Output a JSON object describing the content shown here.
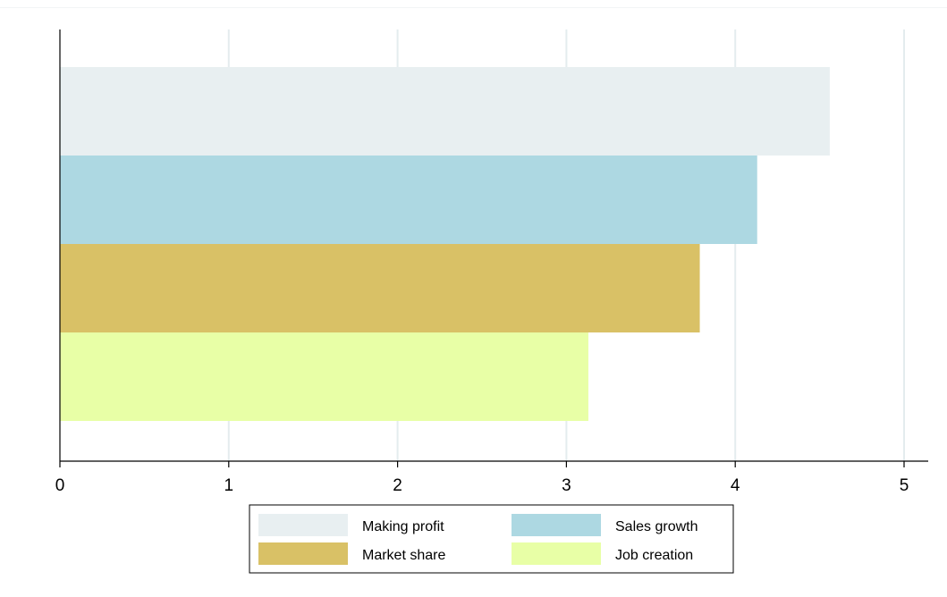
{
  "chart_data": {
    "type": "bar",
    "orientation": "horizontal",
    "title": "",
    "xlabel": "",
    "ylabel": "",
    "xlim": [
      0,
      5
    ],
    "x_ticks": [
      0,
      1,
      2,
      3,
      4,
      5
    ],
    "grid": true,
    "legend_position": "bottom",
    "series": [
      {
        "name": "Making profit",
        "value": 4.56,
        "color": "#e8eff1"
      },
      {
        "name": "Sales growth",
        "value": 4.13,
        "color": "#add8e2"
      },
      {
        "name": "Market share",
        "value": 3.79,
        "color": "#d9c166"
      },
      {
        "name": "Job creation",
        "value": 3.13,
        "color": "#e8ffa6"
      }
    ]
  }
}
